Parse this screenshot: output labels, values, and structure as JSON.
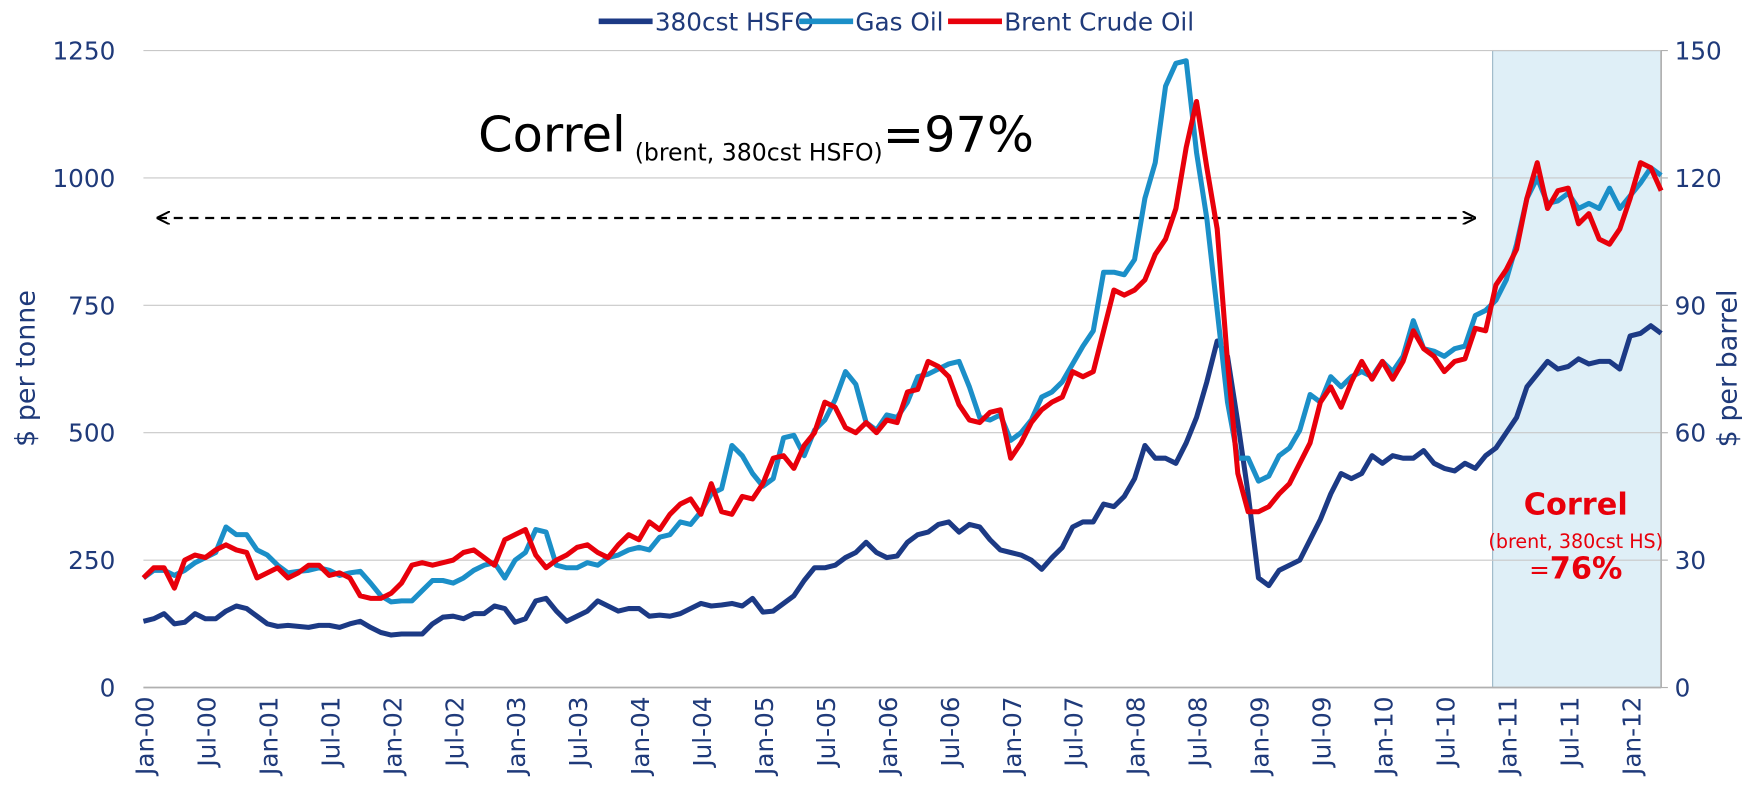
{
  "chart_data": {
    "type": "line",
    "y_label": "$ per tonne",
    "y2_label": "$ per barrel",
    "ylim": [
      0,
      1250
    ],
    "yticks": [
      0,
      250,
      500,
      750,
      1000,
      1250
    ],
    "y2lim": [
      0,
      150
    ],
    "y2ticks": [
      0,
      30,
      60,
      90,
      120,
      150
    ],
    "grid": true,
    "legend": "top",
    "annotations": {
      "main": [
        "Correl",
        "(brent, 380cst HSFO)",
        "=97%"
      ],
      "box": [
        "Correl",
        "(brent, 380cst HS)",
        "=",
        "76%"
      ]
    },
    "categories": [
      "Jan-00",
      null,
      null,
      null,
      null,
      null,
      "Jul-00",
      null,
      null,
      null,
      null,
      null,
      "Jan-01",
      null,
      null,
      null,
      null,
      null,
      "Jul-01",
      null,
      null,
      null,
      null,
      null,
      "Jan-02",
      null,
      null,
      null,
      null,
      null,
      "Jul-02",
      null,
      null,
      null,
      null,
      null,
      "Jan-03",
      null,
      null,
      null,
      null,
      null,
      "Jul-03",
      null,
      null,
      null,
      null,
      null,
      "Jan-04",
      null,
      null,
      null,
      null,
      null,
      "Jul-04",
      null,
      null,
      null,
      null,
      null,
      "Jan-05",
      null,
      null,
      null,
      null,
      null,
      "Jul-05",
      null,
      null,
      null,
      null,
      null,
      "Jan-06",
      null,
      null,
      null,
      null,
      null,
      "Jul-06",
      null,
      null,
      null,
      null,
      null,
      "Jan-07",
      null,
      null,
      null,
      null,
      null,
      "Jul-07",
      null,
      null,
      null,
      null,
      null,
      "Jan-08",
      null,
      null,
      null,
      null,
      null,
      "Jul-08",
      null,
      null,
      null,
      null,
      null,
      "Jan-09",
      null,
      null,
      null,
      null,
      null,
      "Jul-09",
      null,
      null,
      null,
      null,
      null,
      "Jan-10",
      null,
      null,
      null,
      null,
      null,
      "Jul-10",
      null,
      null,
      null,
      null,
      null,
      "Jan-11",
      null,
      null,
      null,
      null,
      null,
      "Jul-11",
      null,
      null,
      null,
      null,
      null,
      "Jan-12",
      null,
      null,
      null
    ],
    "series": [
      {
        "name": "380cst HSFO",
        "color": "#1c3a85",
        "values": [
          130,
          135,
          145,
          125,
          128,
          145,
          135,
          135,
          150,
          160,
          155,
          140,
          125,
          120,
          122,
          120,
          118,
          122,
          122,
          118,
          125,
          130,
          118,
          108,
          103,
          105,
          105,
          105,
          125,
          138,
          140,
          135,
          145,
          145,
          160,
          155,
          128,
          135,
          170,
          175,
          150,
          130,
          140,
          150,
          170,
          160,
          150,
          155,
          155,
          140,
          142,
          140,
          145,
          155,
          165,
          160,
          162,
          165,
          160,
          175,
          148,
          150,
          165,
          180,
          210,
          235,
          235,
          240,
          255,
          265,
          285,
          265,
          255,
          258,
          285,
          300,
          305,
          320,
          325,
          305,
          320,
          315,
          290,
          270,
          265,
          260,
          250,
          232,
          255,
          275,
          315,
          325,
          325,
          360,
          355,
          375,
          410,
          475,
          450,
          450,
          440,
          480,
          530,
          600,
          680,
          650,
          520,
          380,
          215,
          200,
          230,
          240,
          250,
          290,
          330,
          380,
          420,
          410,
          420,
          455,
          440,
          455,
          450,
          450,
          465,
          440,
          430,
          425,
          440,
          430,
          455,
          470,
          500,
          530,
          590,
          615,
          640,
          625,
          630,
          645,
          635,
          640,
          640,
          625,
          690,
          695,
          710,
          695
        ]
      },
      {
        "name": "Gas Oil",
        "color": "#1b8fc8",
        "values": [
          215,
          230,
          230,
          220,
          230,
          245,
          255,
          265,
          315,
          300,
          300,
          270,
          260,
          240,
          225,
          228,
          230,
          235,
          230,
          220,
          225,
          228,
          205,
          180,
          168,
          170,
          170,
          190,
          210,
          210,
          205,
          215,
          230,
          240,
          245,
          215,
          250,
          265,
          310,
          305,
          240,
          235,
          235,
          245,
          240,
          255,
          260,
          270,
          275,
          270,
          295,
          300,
          325,
          320,
          345,
          380,
          390,
          475,
          455,
          420,
          395,
          410,
          490,
          495,
          455,
          505,
          525,
          565,
          620,
          595,
          520,
          505,
          535,
          530,
          560,
          610,
          615,
          625,
          635,
          640,
          590,
          530,
          525,
          535,
          485,
          500,
          525,
          570,
          580,
          600,
          635,
          670,
          700,
          815,
          815,
          810,
          840,
          960,
          1030,
          1180,
          1225,
          1230,
          1050,
          920,
          740,
          560,
          450,
          450,
          405,
          415,
          455,
          470,
          505,
          575,
          560,
          610,
          590,
          610,
          620,
          610,
          640,
          620,
          650,
          720,
          665,
          660,
          650,
          665,
          670,
          730,
          740,
          760,
          800,
          870,
          960,
          1000,
          950,
          955,
          970,
          940,
          950,
          940,
          980,
          940,
          965,
          990,
          1020,
          1005
        ]
      },
      {
        "name": "Brent Crude Oil",
        "color": "#e8000b",
        "axis": "y2",
        "values": [
          25.8,
          28.2,
          28.2,
          23.4,
          30,
          31.2,
          30.6,
          32.4,
          33.6,
          32.4,
          31.8,
          25.8,
          27,
          28.2,
          25.8,
          27,
          28.8,
          28.8,
          26.4,
          27,
          25.8,
          21.6,
          21,
          21,
          22.2,
          24.6,
          28.8,
          29.4,
          28.8,
          29.4,
          30,
          31.8,
          32.4,
          30.6,
          28.8,
          34.8,
          36,
          37.2,
          31.2,
          28.2,
          30,
          31.2,
          33,
          33.6,
          31.8,
          30.6,
          33.6,
          36,
          34.8,
          39,
          37.2,
          40.8,
          43.2,
          44.4,
          40.8,
          48,
          41.4,
          40.8,
          45,
          44.4,
          48,
          54,
          54.6,
          51.6,
          57,
          60,
          67.2,
          66,
          61.2,
          60,
          62.4,
          60,
          63,
          62.4,
          69.6,
          70.2,
          76.8,
          75.6,
          73.2,
          66.6,
          63,
          62.4,
          64.8,
          65.4,
          54,
          57.6,
          62.4,
          65.4,
          67.2,
          68.4,
          74.4,
          73.2,
          74.4,
          84,
          93.6,
          92.4,
          93.6,
          96,
          102,
          105.6,
          112.8,
          127.2,
          138,
          122.4,
          108,
          76.8,
          50.4,
          41.4,
          41.4,
          42.6,
          45.6,
          48,
          52.8,
          57.6,
          67.2,
          70.8,
          66,
          72,
          76.8,
          72.6,
          76.8,
          72.6,
          76.8,
          84,
          79.8,
          78,
          74.4,
          76.8,
          77.4,
          84.6,
          84,
          94.8,
          98.4,
          103.2,
          115.2,
          123.6,
          112.8,
          117,
          117.6,
          109.2,
          111.6,
          105.6,
          104.4,
          108,
          115.2,
          123.6,
          122.4,
          117
        ]
      }
    ]
  }
}
